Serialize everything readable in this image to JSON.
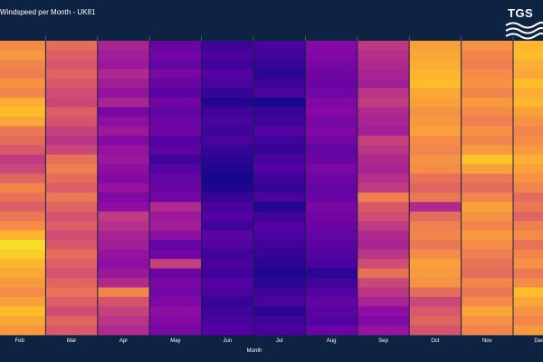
{
  "chart_data": {
    "type": "heatmap",
    "title": "Windspeed per Month - UK81",
    "xlabel": "Month",
    "ylabel": "",
    "categories": [
      "Feb",
      "Mar",
      "Apr",
      "May",
      "Jun",
      "Jul",
      "Aug",
      "Sep",
      "Oct",
      "Nov",
      "Dec"
    ],
    "row_count": 31,
    "colormap": "plasma",
    "color_range": [
      0,
      1
    ],
    "values_normalized": [
      [
        0.72,
        0.62,
        0.38,
        0.2,
        0.1,
        0.12,
        0.28,
        0.45,
        0.78,
        0.74,
        0.84
      ],
      [
        0.76,
        0.58,
        0.36,
        0.22,
        0.12,
        0.1,
        0.26,
        0.42,
        0.8,
        0.7,
        0.86
      ],
      [
        0.7,
        0.55,
        0.34,
        0.18,
        0.1,
        0.08,
        0.24,
        0.4,
        0.82,
        0.68,
        0.82
      ],
      [
        0.68,
        0.6,
        0.4,
        0.24,
        0.14,
        0.06,
        0.22,
        0.38,
        0.84,
        0.72,
        0.8
      ],
      [
        0.74,
        0.56,
        0.36,
        0.2,
        0.12,
        0.1,
        0.2,
        0.36,
        0.86,
        0.74,
        0.86
      ],
      [
        0.7,
        0.52,
        0.32,
        0.16,
        0.08,
        0.12,
        0.22,
        0.44,
        0.8,
        0.7,
        0.82
      ],
      [
        0.82,
        0.5,
        0.38,
        0.22,
        0.04,
        0.02,
        0.26,
        0.46,
        0.78,
        0.76,
        0.84
      ],
      [
        0.86,
        0.58,
        0.24,
        0.18,
        0.1,
        0.08,
        0.28,
        0.4,
        0.74,
        0.72,
        0.78
      ],
      [
        0.8,
        0.54,
        0.3,
        0.2,
        0.12,
        0.1,
        0.24,
        0.38,
        0.76,
        0.68,
        0.74
      ],
      [
        0.66,
        0.48,
        0.34,
        0.22,
        0.1,
        0.14,
        0.26,
        0.36,
        0.78,
        0.74,
        0.7
      ],
      [
        0.62,
        0.44,
        0.28,
        0.14,
        0.12,
        0.1,
        0.22,
        0.48,
        0.72,
        0.7,
        0.72
      ],
      [
        0.56,
        0.5,
        0.32,
        0.16,
        0.08,
        0.08,
        0.18,
        0.44,
        0.7,
        0.76,
        0.76
      ],
      [
        0.46,
        0.64,
        0.34,
        0.1,
        0.06,
        0.12,
        0.2,
        0.4,
        0.74,
        0.88,
        0.82
      ],
      [
        0.5,
        0.68,
        0.3,
        0.14,
        0.04,
        0.14,
        0.24,
        0.38,
        0.72,
        0.78,
        0.78
      ],
      [
        0.6,
        0.62,
        0.28,
        0.18,
        0.02,
        0.1,
        0.22,
        0.42,
        0.64,
        0.66,
        0.74
      ],
      [
        0.7,
        0.58,
        0.32,
        0.2,
        0.04,
        0.08,
        0.18,
        0.46,
        0.6,
        0.62,
        0.7
      ],
      [
        0.64,
        0.66,
        0.26,
        0.22,
        0.08,
        0.12,
        0.2,
        0.68,
        0.66,
        0.7,
        0.62
      ],
      [
        0.58,
        0.6,
        0.3,
        0.4,
        0.12,
        0.04,
        0.24,
        0.56,
        0.4,
        0.78,
        0.66
      ],
      [
        0.66,
        0.54,
        0.46,
        0.34,
        0.14,
        0.1,
        0.22,
        0.52,
        0.62,
        0.74,
        0.6
      ],
      [
        0.72,
        0.58,
        0.42,
        0.36,
        0.1,
        0.14,
        0.2,
        0.46,
        0.68,
        0.7,
        0.68
      ],
      [
        0.84,
        0.52,
        0.38,
        0.3,
        0.16,
        0.12,
        0.18,
        0.4,
        0.7,
        0.76,
        0.72
      ],
      [
        0.94,
        0.56,
        0.36,
        0.18,
        0.14,
        0.1,
        0.16,
        0.38,
        0.66,
        0.72,
        0.64
      ],
      [
        0.9,
        0.62,
        0.32,
        0.22,
        0.1,
        0.08,
        0.14,
        0.44,
        0.72,
        0.68,
        0.7
      ],
      [
        0.84,
        0.58,
        0.3,
        0.48,
        0.12,
        0.06,
        0.12,
        0.52,
        0.78,
        0.64,
        0.74
      ],
      [
        0.8,
        0.54,
        0.34,
        0.2,
        0.1,
        0.04,
        0.06,
        0.64,
        0.76,
        0.62,
        0.66
      ],
      [
        0.76,
        0.6,
        0.4,
        0.24,
        0.14,
        0.06,
        0.1,
        0.5,
        0.74,
        0.7,
        0.72
      ],
      [
        0.72,
        0.64,
        0.7,
        0.22,
        0.12,
        0.1,
        0.14,
        0.44,
        0.62,
        0.66,
        0.86
      ],
      [
        0.78,
        0.58,
        0.54,
        0.26,
        0.08,
        0.12,
        0.18,
        0.38,
        0.5,
        0.72,
        0.8
      ],
      [
        0.86,
        0.52,
        0.48,
        0.3,
        0.1,
        0.06,
        0.16,
        0.3,
        0.56,
        0.8,
        0.74
      ],
      [
        0.8,
        0.6,
        0.44,
        0.28,
        0.12,
        0.1,
        0.14,
        0.26,
        0.6,
        0.74,
        0.7
      ],
      [
        0.76,
        0.56,
        0.4,
        0.24,
        0.14,
        0.12,
        0.2,
        0.32,
        0.54,
        0.7,
        0.76
      ]
    ]
  },
  "logo": {
    "text": "TGS"
  }
}
